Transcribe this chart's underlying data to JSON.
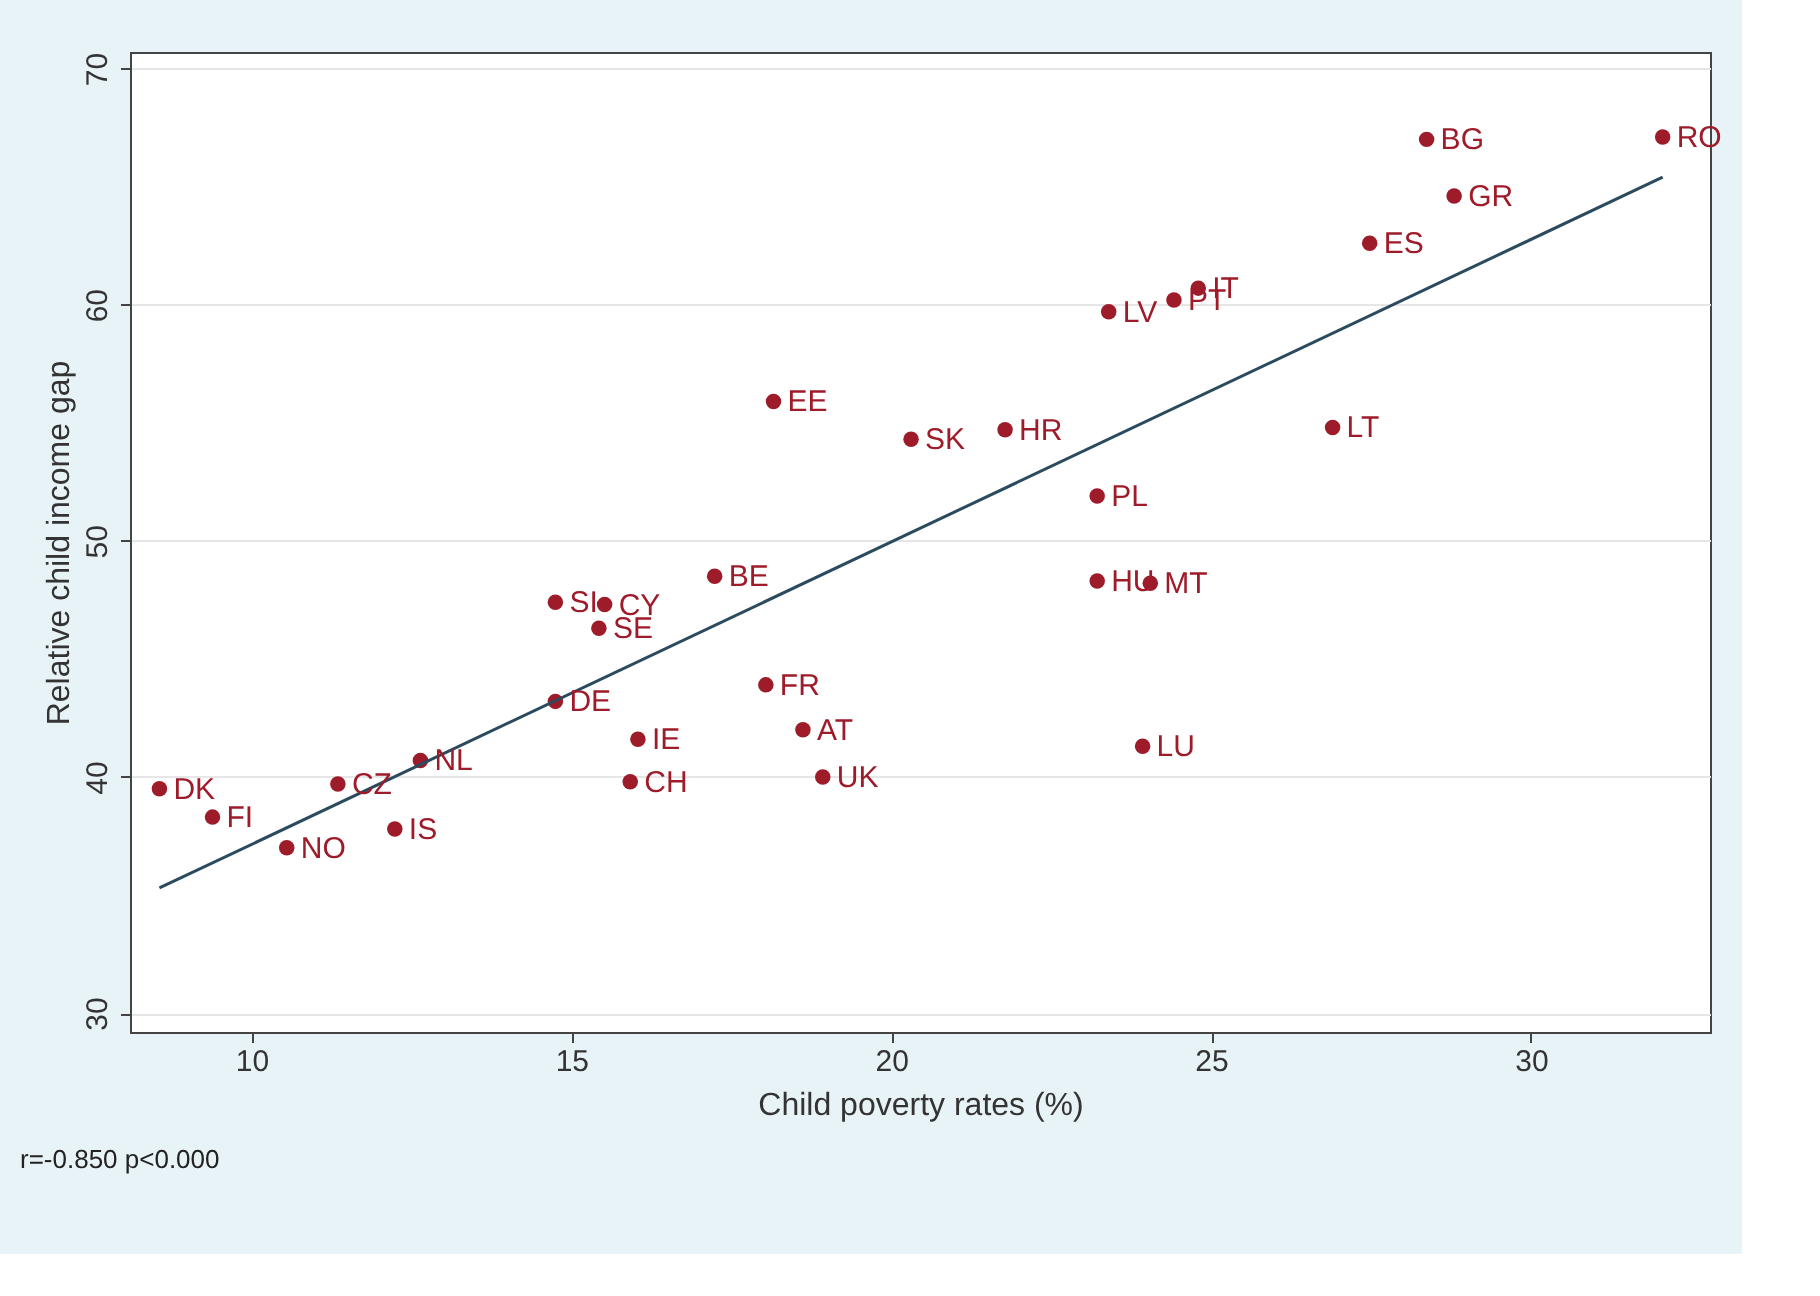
{
  "chart_data": {
    "type": "scatter",
    "xlabel": "Child poverty rates (%)",
    "ylabel": "Relative child income gap",
    "xlim": [
      8.1,
      32.8
    ],
    "xticks": [
      10,
      15,
      20,
      25,
      30
    ],
    "ylim": [
      29.2,
      70.7
    ],
    "yticks": [
      30,
      40,
      50,
      60,
      70
    ],
    "grid": "y",
    "marker": "circle",
    "series": [
      {
        "color": "#9e1b2a",
        "x": [
          8.56,
          9.39,
          10.55,
          11.35,
          12.24,
          12.64,
          14.75,
          14.75,
          15.52,
          15.43,
          16.04,
          15.92,
          17.24,
          18.04,
          18.62,
          18.93,
          18.16,
          20.31,
          21.78,
          23.4,
          24.42,
          24.8,
          23.22,
          23.22,
          24.05,
          23.93,
          26.9,
          27.48,
          28.37,
          28.8,
          32.06
        ],
        "values": [
          39.5,
          38.3,
          37.0,
          39.7,
          37.8,
          40.7,
          43.2,
          47.4,
          47.3,
          46.3,
          41.6,
          39.8,
          48.5,
          43.9,
          42.0,
          40.0,
          55.9,
          54.3,
          54.7,
          59.7,
          60.2,
          60.7,
          51.9,
          48.3,
          48.2,
          41.3,
          54.8,
          62.6,
          67.0,
          64.6,
          67.1
        ]
      },
      {
        "type": "line",
        "color": "#2b4a5e",
        "line_style": "solid",
        "marker": "none",
        "x": [
          8.56,
          32.06
        ],
        "values": [
          35.3,
          65.4
        ]
      }
    ],
    "annotations": [
      {
        "text": "DK",
        "x": 8.56,
        "y": 39.5
      },
      {
        "text": "FI",
        "x": 9.39,
        "y": 38.3
      },
      {
        "text": "NO",
        "x": 10.55,
        "y": 37.0
      },
      {
        "text": "CZ",
        "x": 11.35,
        "y": 39.7
      },
      {
        "text": "IS",
        "x": 12.24,
        "y": 37.8
      },
      {
        "text": "NL",
        "x": 12.64,
        "y": 40.7
      },
      {
        "text": "DE",
        "x": 14.75,
        "y": 43.2
      },
      {
        "text": "SI",
        "x": 14.75,
        "y": 47.4
      },
      {
        "text": "CY",
        "x": 15.52,
        "y": 47.3
      },
      {
        "text": "SE",
        "x": 15.43,
        "y": 46.3
      },
      {
        "text": "IE",
        "x": 16.04,
        "y": 41.6
      },
      {
        "text": "CH",
        "x": 15.92,
        "y": 39.8
      },
      {
        "text": "BE",
        "x": 17.24,
        "y": 48.5
      },
      {
        "text": "FR",
        "x": 18.04,
        "y": 43.9
      },
      {
        "text": "AT",
        "x": 18.62,
        "y": 42.0
      },
      {
        "text": "UK",
        "x": 18.93,
        "y": 40.0
      },
      {
        "text": "EE",
        "x": 18.16,
        "y": 55.9
      },
      {
        "text": "SK",
        "x": 20.31,
        "y": 54.3
      },
      {
        "text": "HR",
        "x": 21.78,
        "y": 54.7
      },
      {
        "text": "LV",
        "x": 23.4,
        "y": 59.7
      },
      {
        "text": "PT",
        "x": 24.42,
        "y": 60.2
      },
      {
        "text": "IT",
        "x": 24.8,
        "y": 60.7
      },
      {
        "text": "PL",
        "x": 23.22,
        "y": 51.9
      },
      {
        "text": "HU",
        "x": 23.22,
        "y": 48.3
      },
      {
        "text": "MT",
        "x": 24.05,
        "y": 48.2
      },
      {
        "text": "LU",
        "x": 23.93,
        "y": 41.3
      },
      {
        "text": "LT",
        "x": 26.9,
        "y": 54.8
      },
      {
        "text": "ES",
        "x": 27.48,
        "y": 62.6
      },
      {
        "text": "BG",
        "x": 28.37,
        "y": 67.0
      },
      {
        "text": "GR",
        "x": 28.8,
        "y": 64.6
      },
      {
        "text": "RO",
        "x": 32.06,
        "y": 67.1
      },
      "r=-0.850 p<0.000"
    ]
  }
}
